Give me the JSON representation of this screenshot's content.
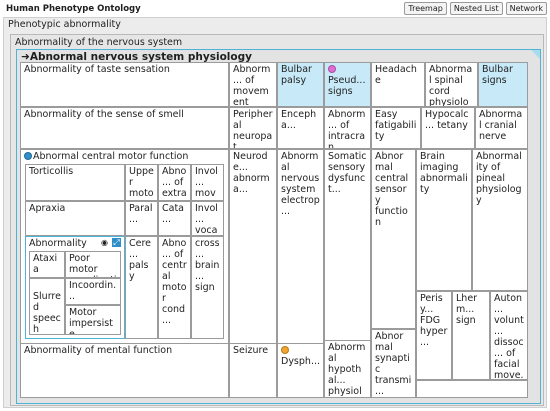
{
  "app": {
    "title": "Human Phenotype Ontology"
  },
  "views": [
    "Treemap",
    "Nested List",
    "Network"
  ],
  "level1": {
    "label": "Phenotypic abnormality"
  },
  "level2": {
    "label": "Abnormality of the nervous system"
  },
  "level3": {
    "arrow": "➜",
    "label": "Abnormal nervous system physiology"
  },
  "colors": {
    "selected": "#c8eaf8",
    "border_accent": "#4fb3d6",
    "pink_dot": "#e26bd4",
    "blue_dot": "#2f8fc9",
    "orange_dot": "#f0a52c"
  },
  "cells": {
    "taste": "Abnormality of taste sensation",
    "movement": "Abnorm... of movement",
    "bulbar_palsy": "Bulbar palsy",
    "pseudo": "Pseud... signs",
    "headache": "Headache",
    "spinal": "Abnormal spinal cord physiology",
    "bulbar_signs": "Bulbar signs",
    "smell": "Abnormality of the sense of smell",
    "neuropat": "Peripheral neuropat...",
    "enceph": "Encepha...",
    "intracran": "Abnorm... of intracran... pressure",
    "easy_fat": "Easy fatigability",
    "hypocalc": "Hypocalc... tetany",
    "cranial": "Abnormal cranial nerve",
    "motor": "Abnormal central motor function",
    "neurode": "Neurode... abnorma...",
    "nerv_elec": "Abnormal nervous system electrop...",
    "somatic": "Somatic sensory dysfunct...",
    "central_sens": "Abnormal central sensory function",
    "brain_img": "Brain imaging abnormality",
    "pineal": "Abnormality of pineal physiology",
    "mental": "Abnormality of mental function",
    "seizure": "Seizure",
    "dysph": "Dysph...",
    "hypothal": "Abnormal hypothal... physiolo...",
    "synaptic": "Abnormal synaptic transmi...",
    "perisy": "Perisy... FDG hyper...",
    "lherm": "Lherm... sign",
    "auton": "Auton... volunt... dissoc... of facial move..."
  },
  "motor_sub": {
    "torticollis": "Torticollis",
    "upper": "Upper motor neuron",
    "extra": "Abno... of extra...",
    "invol_move": "Invol... move...",
    "apraxia": "Apraxia",
    "paral": "Paral...",
    "cata": "Cata...",
    "invol_voc": "Invol... vocal...",
    "abnormality": "Abnormality",
    "cere_palsy": "Cere... palsy",
    "abno_central": "Abno... of central motor cond...",
    "cross_brain": "cross... brain... sign",
    "ataxia": "Ataxia",
    "poor_coord": "Poor motor coordinati...",
    "incoord": "Incoordin...",
    "slurred": "Slurred speech",
    "motor_imp": "Motor impersiste..."
  },
  "icons": {
    "eye": "eye-icon",
    "expand": "expand-icon"
  }
}
